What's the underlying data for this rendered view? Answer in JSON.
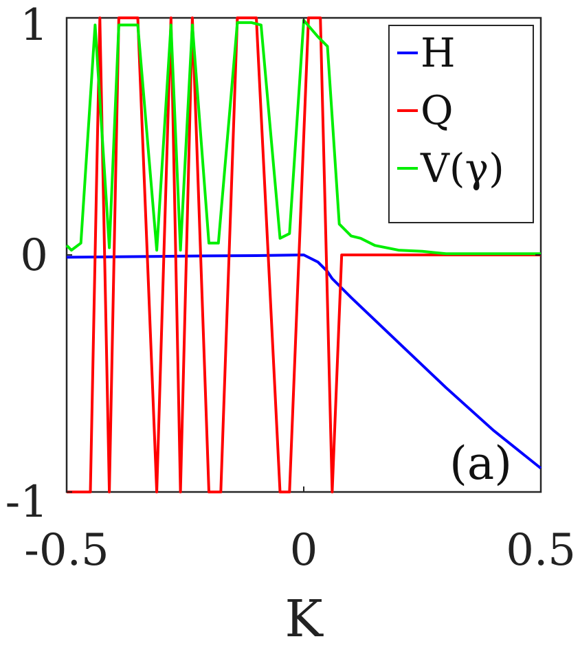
{
  "chart_data": {
    "type": "line",
    "xlabel": "K",
    "xlim": [
      -0.5,
      0.5
    ],
    "ylim": [
      -1,
      1
    ],
    "x_ticks": [
      -0.5,
      0,
      0.5
    ],
    "x_tick_labels": [
      "-0.5",
      "0",
      "0.5"
    ],
    "y_ticks": [
      -1,
      0,
      1
    ],
    "y_tick_labels": [
      "-1",
      "0",
      "1"
    ],
    "grid": false,
    "legend_position": "top-right",
    "annotation": "(a)",
    "series": [
      {
        "name": "H",
        "color": "#0000ff",
        "points": [
          [
            -0.5,
            -0.01
          ],
          [
            -0.4,
            -0.008
          ],
          [
            -0.3,
            -0.006
          ],
          [
            -0.2,
            -0.004
          ],
          [
            -0.1,
            -0.003
          ],
          [
            0.0,
            0.0
          ],
          [
            0.03,
            -0.03
          ],
          [
            0.05,
            -0.07
          ],
          [
            0.06,
            -0.1
          ],
          [
            0.1,
            -0.18
          ],
          [
            0.2,
            -0.37
          ],
          [
            0.3,
            -0.56
          ],
          [
            0.4,
            -0.74
          ],
          [
            0.5,
            -0.9
          ]
        ]
      },
      {
        "name": "Q",
        "color": "#ff0000",
        "points": [
          [
            -0.5,
            -1
          ],
          [
            -0.45,
            -1
          ],
          [
            -0.43,
            1
          ],
          [
            -0.41,
            -1
          ],
          [
            -0.39,
            1
          ],
          [
            -0.35,
            1
          ],
          [
            -0.31,
            -1
          ],
          [
            -0.28,
            1
          ],
          [
            -0.26,
            -1
          ],
          [
            -0.235,
            1
          ],
          [
            -0.2,
            -1
          ],
          [
            -0.175,
            -1
          ],
          [
            -0.14,
            1
          ],
          [
            -0.1,
            1
          ],
          [
            -0.05,
            -1
          ],
          [
            -0.03,
            -1
          ],
          [
            0.01,
            1
          ],
          [
            0.035,
            1
          ],
          [
            0.06,
            -1
          ],
          [
            0.08,
            0
          ],
          [
            0.5,
            0
          ]
        ]
      },
      {
        "name": "V(γ)",
        "color": "#00ee00",
        "points": [
          [
            -0.5,
            0.04
          ],
          [
            -0.49,
            0.02
          ],
          [
            -0.47,
            0.05
          ],
          [
            -0.44,
            0.97
          ],
          [
            -0.41,
            0.03
          ],
          [
            -0.39,
            0.97
          ],
          [
            -0.36,
            0.97
          ],
          [
            -0.35,
            0.97
          ],
          [
            -0.31,
            0.02
          ],
          [
            -0.28,
            0.97
          ],
          [
            -0.26,
            0.02
          ],
          [
            -0.235,
            0.97
          ],
          [
            -0.2,
            0.05
          ],
          [
            -0.18,
            0.05
          ],
          [
            -0.14,
            0.98
          ],
          [
            -0.11,
            0.98
          ],
          [
            -0.09,
            0.97
          ],
          [
            -0.05,
            0.07
          ],
          [
            -0.03,
            0.09
          ],
          [
            0.0,
            0.99
          ],
          [
            0.03,
            0.92
          ],
          [
            0.05,
            0.88
          ],
          [
            0.075,
            0.13
          ],
          [
            0.1,
            0.08
          ],
          [
            0.12,
            0.07
          ],
          [
            0.15,
            0.04
          ],
          [
            0.2,
            0.02
          ],
          [
            0.25,
            0.015
          ],
          [
            0.3,
            0.005
          ],
          [
            0.4,
            0.005
          ],
          [
            0.5,
            0.005
          ]
        ]
      }
    ]
  }
}
